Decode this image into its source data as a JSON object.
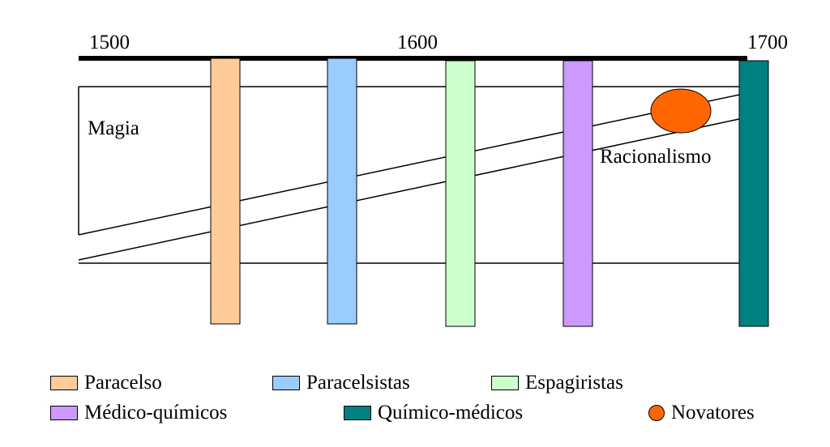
{
  "timeline": {
    "years": [
      "1500",
      "1600",
      "1700"
    ]
  },
  "labels": {
    "magia": "Magia",
    "racionalismo": "Racionalismo"
  },
  "legend": [
    {
      "label": "Paracelso",
      "color": "#FFCC99",
      "shape": "square"
    },
    {
      "label": "Paracelsistas",
      "color": "#99CCFF",
      "shape": "square"
    },
    {
      "label": "Espagiristas",
      "color": "#CCFFCC",
      "shape": "square"
    },
    {
      "label": "Médico-químicos",
      "color": "#CC99FF",
      "shape": "square"
    },
    {
      "label": "Químico-médicos",
      "color": "#008080",
      "shape": "square"
    },
    {
      "label": "Novatores",
      "color": "#FF6600",
      "shape": "circle"
    }
  ]
}
